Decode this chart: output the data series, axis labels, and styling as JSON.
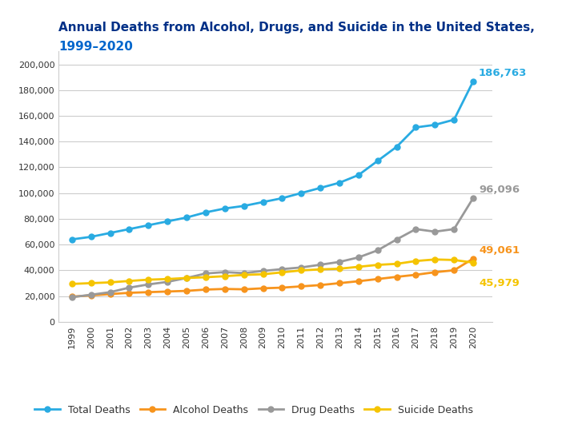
{
  "years": [
    1999,
    2000,
    2001,
    2002,
    2003,
    2004,
    2005,
    2006,
    2007,
    2008,
    2009,
    2010,
    2011,
    2012,
    2013,
    2014,
    2015,
    2016,
    2017,
    2018,
    2019,
    2020
  ],
  "total_deaths": [
    64000,
    66000,
    69000,
    72000,
    75000,
    78000,
    81000,
    85000,
    88000,
    90000,
    93000,
    96000,
    100000,
    104000,
    108000,
    114000,
    125000,
    136000,
    151000,
    153000,
    157000,
    186763
  ],
  "alcohol_deaths": [
    19500,
    20500,
    21500,
    22500,
    23000,
    23500,
    24000,
    25000,
    25500,
    25200,
    26000,
    26500,
    27500,
    28500,
    30000,
    31500,
    33200,
    34900,
    36500,
    38500,
    40000,
    49061
  ],
  "drug_deaths": [
    19100,
    21000,
    23000,
    26500,
    29000,
    31000,
    34000,
    37500,
    38600,
    37800,
    39500,
    40900,
    42200,
    44300,
    46500,
    50000,
    55500,
    64000,
    72000,
    70000,
    72000,
    96096
  ],
  "suicide_deaths": [
    29400,
    30000,
    30600,
    31700,
    32700,
    33200,
    34000,
    34600,
    35400,
    36400,
    36900,
    38400,
    39900,
    40700,
    41200,
    42700,
    44200,
    45000,
    47200,
    48400,
    48000,
    45979
  ],
  "title_line1": "Annual Deaths from Alcohol, Drugs, and Suicide in the United States,",
  "title_line2": "1999–2020",
  "total_label": "186,763",
  "alcohol_label": "49,061",
  "drug_label": "96,096",
  "suicide_label": "45,979",
  "legend_labels": [
    "Total Deaths",
    "Alcohol Deaths",
    "Drug Deaths",
    "Suicide Deaths"
  ],
  "total_color": "#29ABE2",
  "alcohol_color": "#F7941D",
  "drug_color": "#999999",
  "suicide_color": "#F5C400",
  "title_color": "#003087",
  "subtitle_color": "#0066CC",
  "background_color": "#FFFFFF",
  "plot_bg_color": "#FFFFFF",
  "grid_color": "#CCCCCC",
  "tick_color": "#333333",
  "ylim": [
    0,
    210000
  ],
  "yticks": [
    0,
    20000,
    40000,
    60000,
    80000,
    100000,
    120000,
    140000,
    160000,
    180000,
    200000
  ]
}
